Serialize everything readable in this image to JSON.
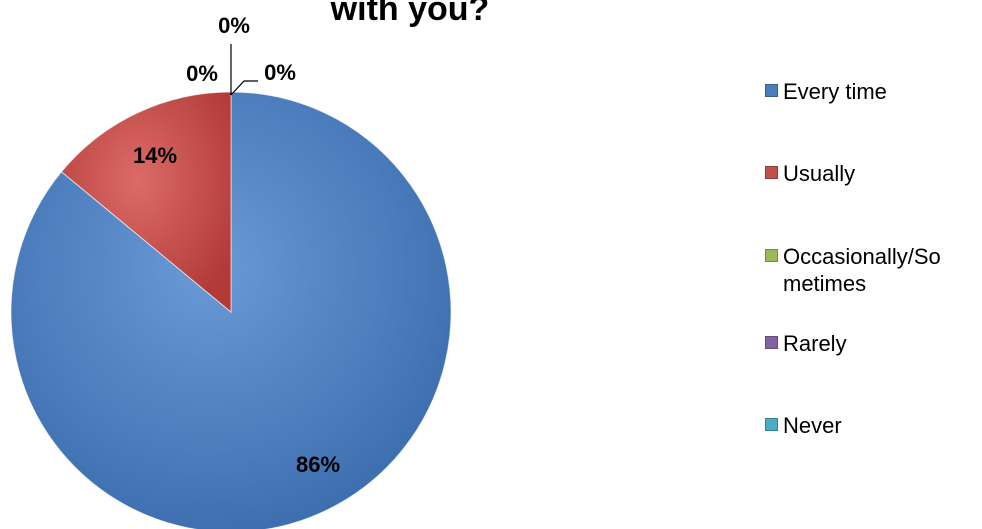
{
  "chart_data": {
    "type": "pie",
    "title": "with you?",
    "categories": [
      "Every time",
      "Usually",
      "Occasionally/Sometimes",
      "Rarely",
      "Never"
    ],
    "values": [
      86,
      14,
      0,
      0,
      0
    ],
    "data_labels": [
      "86%",
      "14%",
      "0%",
      "0%",
      "0%"
    ],
    "colors": [
      "#4a7ebb",
      "#c0504d",
      "#9bbb59",
      "#8064a2",
      "#4bacc6"
    ],
    "legend_labels": [
      "Every time",
      "Usually",
      "Occasionally/So metimes",
      "Rarely",
      "Never"
    ],
    "legend_position": "right"
  }
}
